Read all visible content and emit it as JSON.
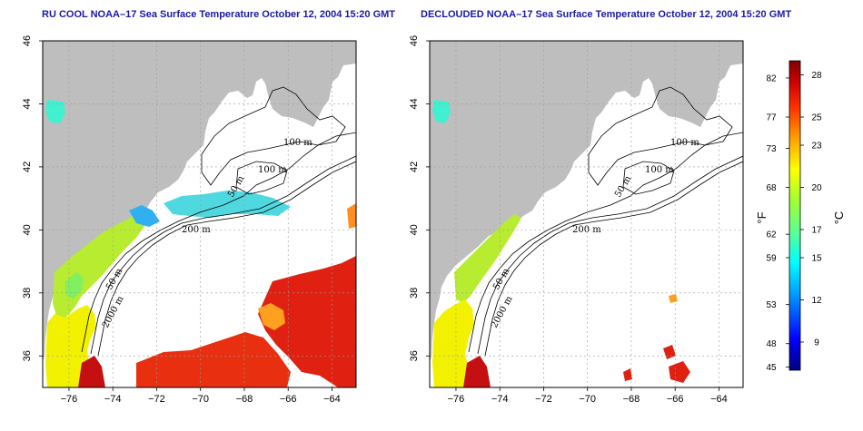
{
  "panels": [
    {
      "id": "left",
      "title": "RU COOL NOAA–17 Sea Surface Temperature October 12, 2004 15:20 GMT",
      "contour_labels": [
        "100 m",
        "100 m",
        "50 m",
        "200 m",
        "50 m",
        "2000 m"
      ]
    },
    {
      "id": "right",
      "title": "DECLOUDED NOAA–17 Sea Surface Temperature October 12, 2004 15:20 GMT",
      "contour_labels": [
        "100 m",
        "100 m",
        "50 m",
        "200 m",
        "50 m",
        "2000 m"
      ]
    }
  ],
  "axes": {
    "x_ticks": [
      "−76",
      "−74",
      "−72",
      "−70",
      "−68",
      "−66",
      "−64"
    ],
    "y_ticks": [
      "46",
      "44",
      "42",
      "40",
      "38",
      "36"
    ],
    "x_values": [
      -76,
      -74,
      -72,
      -70,
      -68,
      -66,
      -64
    ],
    "y_values": [
      46,
      44,
      42,
      40,
      38,
      36
    ],
    "xlim": [
      -77.2,
      -62.9
    ],
    "ylim": [
      35,
      46
    ]
  },
  "colorbar": {
    "fahrenheit_ticks": [
      "82",
      "77",
      "73",
      "68",
      "62",
      "59",
      "53",
      "48",
      "45"
    ],
    "celsius_ticks": [
      "28",
      "25",
      "23",
      "20",
      "17",
      "15",
      "12",
      "9"
    ],
    "fahrenheit_values": [
      82,
      77,
      73,
      68,
      62,
      59,
      53,
      48,
      45
    ],
    "celsius_values": [
      28,
      25,
      23,
      20,
      17,
      15,
      12,
      9
    ],
    "range_celsius": [
      7,
      29
    ],
    "fahrenheit_unit": "°F",
    "celsius_unit": "°C",
    "colors": [
      "#000080",
      "#0000ff",
      "#00a0ff",
      "#00ffff",
      "#40ffa0",
      "#80ff40",
      "#ffff00",
      "#ffa000",
      "#ff3000",
      "#c00000",
      "#800000"
    ]
  },
  "colors": {
    "land": "#bebebe",
    "ocean": "#ffffff",
    "grid": "#9a9a9a",
    "title": "#1a1aa6"
  }
}
